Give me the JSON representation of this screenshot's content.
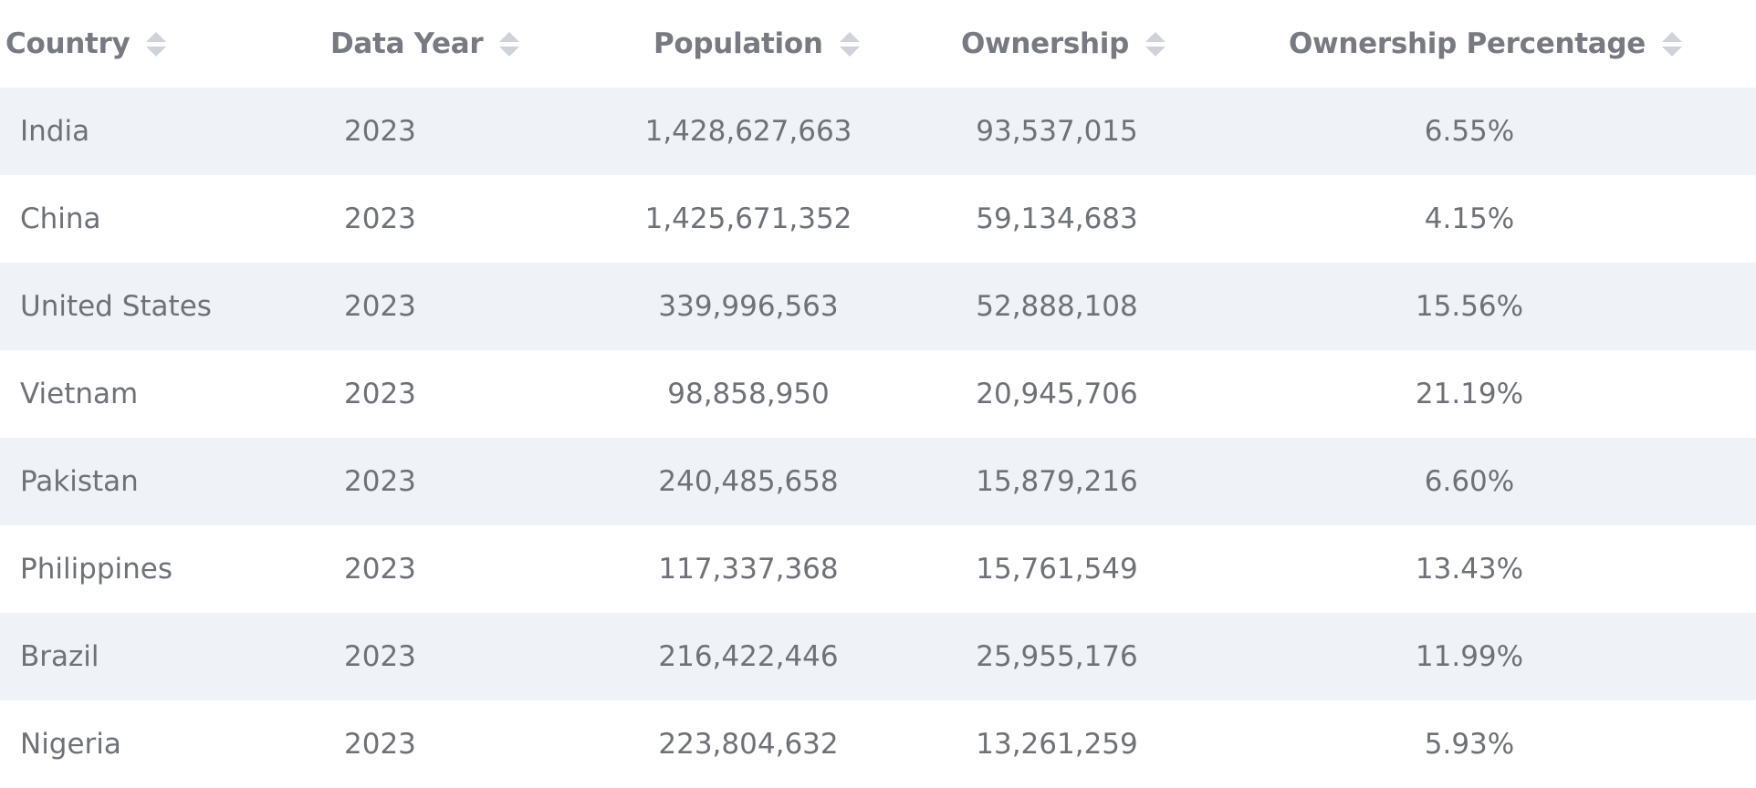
{
  "table": {
    "headers": [
      {
        "label": "Country"
      },
      {
        "label": "Data Year"
      },
      {
        "label": "Population"
      },
      {
        "label": "Ownership"
      },
      {
        "label": "Ownership Percentage"
      }
    ],
    "rows": [
      {
        "country": "India",
        "year": "2023",
        "population": "1,428,627,663",
        "ownership": "93,537,015",
        "percentage": "6.55%"
      },
      {
        "country": "China",
        "year": "2023",
        "population": "1,425,671,352",
        "ownership": "59,134,683",
        "percentage": "4.15%"
      },
      {
        "country": "United States",
        "year": "2023",
        "population": "339,996,563",
        "ownership": "52,888,108",
        "percentage": "15.56%"
      },
      {
        "country": "Vietnam",
        "year": "2023",
        "population": "98,858,950",
        "ownership": "20,945,706",
        "percentage": "21.19%"
      },
      {
        "country": "Pakistan",
        "year": "2023",
        "population": "240,485,658",
        "ownership": "15,879,216",
        "percentage": "6.60%"
      },
      {
        "country": "Philippines",
        "year": "2023",
        "population": "117,337,368",
        "ownership": "15,761,549",
        "percentage": "13.43%"
      },
      {
        "country": "Brazil",
        "year": "2023",
        "population": "216,422,446",
        "ownership": "25,955,176",
        "percentage": "11.99%"
      },
      {
        "country": "Nigeria",
        "year": "2023",
        "population": "223,804,632",
        "ownership": "13,261,259",
        "percentage": "5.93%"
      }
    ]
  }
}
